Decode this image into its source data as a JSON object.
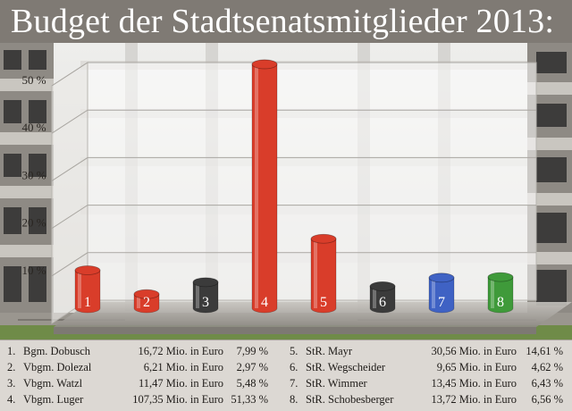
{
  "title": "Budget der Stadtsenatsmitglieder 2013:",
  "chart_data": {
    "type": "bar",
    "categories": [
      "1",
      "2",
      "3",
      "4",
      "5",
      "6",
      "7",
      "8"
    ],
    "values": [
      7.99,
      2.97,
      5.48,
      51.33,
      14.61,
      4.62,
      6.43,
      6.56
    ],
    "ylim": [
      0,
      50
    ],
    "ytick_labels": [
      "50 %",
      "40 %",
      "30 %",
      "20 %",
      "10 %"
    ],
    "ytick_values": [
      50,
      40,
      30,
      20,
      10
    ],
    "bar_colors": [
      "#d93d2a",
      "#d93d2a",
      "#3b3b3b",
      "#d93d2a",
      "#d93d2a",
      "#3b3b3b",
      "#3f62c4",
      "#3f9a3a"
    ],
    "grid": true
  },
  "legend": {
    "left": [
      {
        "num": "1.",
        "name": "Bgm. Dobusch",
        "amount": "16,72 Mio. in Euro",
        "percent": "7,99 %"
      },
      {
        "num": "2.",
        "name": "Vbgm. Dolezal",
        "amount": "6,21 Mio. in Euro",
        "percent": "2,97 %"
      },
      {
        "num": "3.",
        "name": "Vbgm. Watzl",
        "amount": "11,47 Mio. in Euro",
        "percent": "5,48 %"
      },
      {
        "num": "4.",
        "name": "Vbgm. Luger",
        "amount": "107,35 Mio. in Euro",
        "percent": "51,33 %"
      }
    ],
    "right": [
      {
        "num": "5.",
        "name": "StR. Mayr",
        "amount": "30,56 Mio. in Euro",
        "percent": "14,61 %"
      },
      {
        "num": "6.",
        "name": "StR. Wegscheider",
        "amount": "9,65 Mio. in Euro",
        "percent": "4,62 %"
      },
      {
        "num": "7.",
        "name": "StR. Wimmer",
        "amount": "13,45 Mio. in Euro",
        "percent": "6,43 %"
      },
      {
        "num": "8.",
        "name": "StR. Schobesberger",
        "amount": "13,72 Mio. in Euro",
        "percent": "6,56 %"
      }
    ]
  }
}
